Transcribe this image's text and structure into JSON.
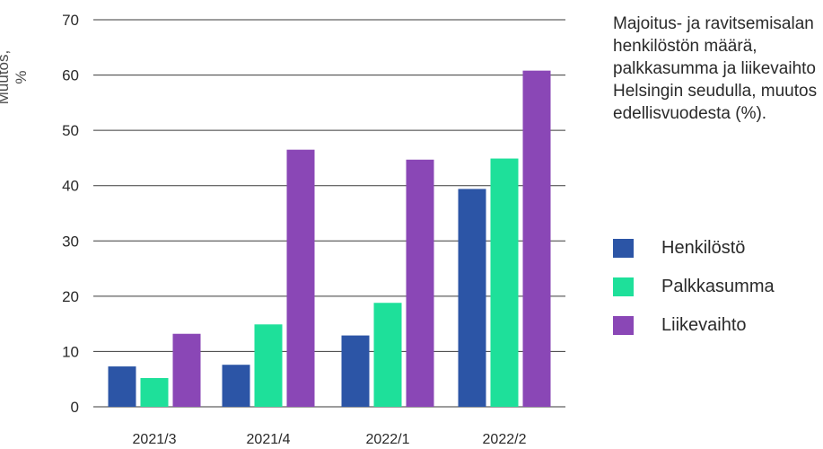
{
  "chart_data": {
    "type": "bar",
    "title": "Majoitus- ja ravitsemisalan henkilöstön määrä, palkkasumma ja liikevaihto Helsingin seudulla, muutos edellisvuodesta (%).",
    "ylabel": "Muutos, %",
    "xlabel": "",
    "ylim": [
      0,
      70
    ],
    "yticks": [
      0,
      10,
      20,
      30,
      40,
      50,
      60,
      70
    ],
    "grid": true,
    "legend_position": "right",
    "categories": [
      "2021/3",
      "2021/4",
      "2022/1",
      "2022/2"
    ],
    "series": [
      {
        "name": "Henkilöstö",
        "color": "#2c55a6",
        "values": [
          7.3,
          7.6,
          12.9,
          39.4
        ]
      },
      {
        "name": "Palkkasumma",
        "color": "#1ee09a",
        "values": [
          5.2,
          14.9,
          18.8,
          44.9
        ]
      },
      {
        "name": "Liikevaihto",
        "color": "#8a47b6",
        "values": [
          13.2,
          46.5,
          44.7,
          60.8
        ]
      }
    ]
  }
}
